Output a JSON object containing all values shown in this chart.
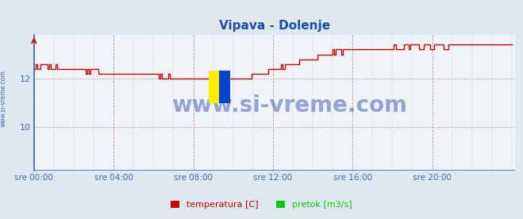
{
  "title": "Vipava - Dolenje",
  "title_color": "#1a4fa0",
  "bg_color": "#dde8f0",
  "plot_bg_color": "#eef4f8",
  "x_label_color": "#4466aa",
  "y_label_color": "#4466aa",
  "watermark": "www.si-vreme.com",
  "watermark_color": "#2244aa",
  "legend_labels": [
    "temperatura [C]",
    "pretok [m3/s]"
  ],
  "legend_colors": [
    "#cc0000",
    "#00cc00"
  ],
  "yticks": [
    10,
    12
  ],
  "ylim": [
    8.2,
    13.8
  ],
  "xlim": [
    0,
    290
  ],
  "xtick_positions": [
    0,
    48,
    96,
    144,
    192,
    240
  ],
  "xtick_labels": [
    "sre 00:00",
    "sre 04:00",
    "sre 08:00",
    "sre 12:00",
    "sre 16:00",
    "sre 20:00"
  ],
  "vgrid_color": "#cc8888",
  "vgrid_style": "--",
  "hgrid_color": "#cc8888",
  "hgrid_style": ":",
  "temp_color": "#cc0000",
  "flow_color": "#00cc00",
  "axis_color": "#4466aa",
  "left_spine_color": "#4466aa",
  "bottom_line_color": "#4466aa"
}
